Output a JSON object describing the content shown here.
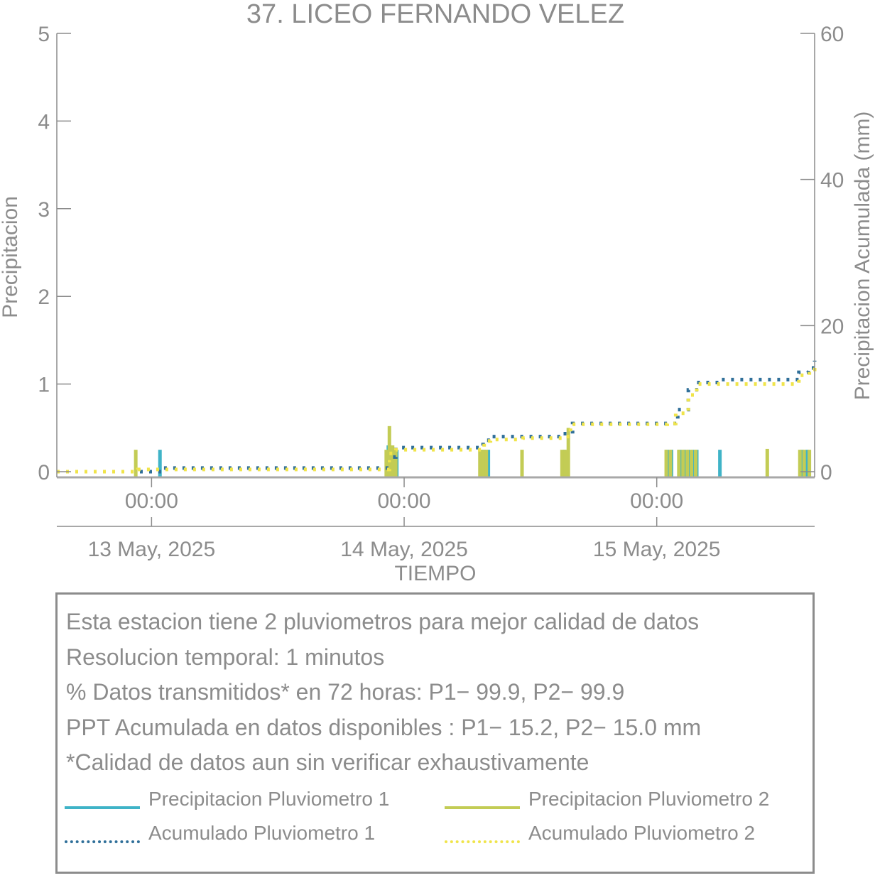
{
  "chart_data": {
    "type": "bar",
    "title": "37. LICEO FERNANDO VELEZ",
    "xlabel": "TIEMPO",
    "ylabel": "Precipitacion",
    "y2label": "Precipitacion Acumulada (mm)",
    "ylim": [
      0,
      5
    ],
    "y2lim": [
      0,
      60
    ],
    "yticks": [
      "0",
      "1",
      "2",
      "3",
      "4",
      "5"
    ],
    "y2ticks": [
      "0",
      "20",
      "40",
      "60"
    ],
    "xlim_hours": [
      -9,
      63
    ],
    "x_time_ticks": [
      {
        "hour": 0,
        "label": "00:00"
      },
      {
        "hour": 24,
        "label": "00:00"
      },
      {
        "hour": 48,
        "label": "00:00"
      }
    ],
    "x_date_ticks": [
      {
        "hour": 0,
        "label": "13 May, 2025"
      },
      {
        "hour": 24,
        "label": "14 May, 2025"
      },
      {
        "hour": 48,
        "label": "15 May, 2025"
      }
    ],
    "series": [
      {
        "name": "Precipitacion Pluviometro 1",
        "kind": "bar",
        "color": "#3fb3c7",
        "points": [
          [
            0.8,
            0.25
          ],
          [
            22.5,
            0.3
          ],
          [
            22.8,
            0.3
          ],
          [
            23.3,
            0.25
          ],
          [
            31.3,
            0.25
          ],
          [
            31.6,
            0.25
          ],
          [
            32.0,
            0.25
          ],
          [
            39.2,
            0.25
          ],
          [
            39.5,
            0.2
          ],
          [
            49.0,
            0.25
          ],
          [
            49.4,
            0.25
          ],
          [
            50.2,
            0.25
          ],
          [
            50.6,
            0.25
          ],
          [
            51.0,
            0.25
          ],
          [
            51.4,
            0.25
          ],
          [
            51.8,
            0.25
          ],
          [
            54.0,
            0.25
          ],
          [
            61.8,
            0.25
          ],
          [
            62.3,
            0.25
          ]
        ]
      },
      {
        "name": "Precipitacion Pluviometro 2",
        "kind": "bar",
        "color": "#c3cc55",
        "points": [
          [
            -1.5,
            0.25
          ],
          [
            22.3,
            0.25
          ],
          [
            22.6,
            0.52
          ],
          [
            22.9,
            0.3
          ],
          [
            23.2,
            0.25
          ],
          [
            31.2,
            0.25
          ],
          [
            31.5,
            0.25
          ],
          [
            31.8,
            0.25
          ],
          [
            35.2,
            0.25
          ],
          [
            39.0,
            0.25
          ],
          [
            39.3,
            0.25
          ],
          [
            39.6,
            0.5
          ],
          [
            48.9,
            0.25
          ],
          [
            49.3,
            0.25
          ],
          [
            50.1,
            0.25
          ],
          [
            50.5,
            0.25
          ],
          [
            50.9,
            0.25
          ],
          [
            51.3,
            0.25
          ],
          [
            51.7,
            0.25
          ],
          [
            58.5,
            0.26
          ],
          [
            61.6,
            0.25
          ],
          [
            62.0,
            0.25
          ],
          [
            62.5,
            0.25
          ]
        ]
      },
      {
        "name": "Acumulado Pluviometro 1",
        "kind": "dotted-line",
        "color": "#2f6f99",
        "points": [
          [
            -9,
            0
          ],
          [
            0.5,
            0
          ],
          [
            1.0,
            0.5
          ],
          [
            22.3,
            0.5
          ],
          [
            22.6,
            2.0
          ],
          [
            23.2,
            3.3
          ],
          [
            31.0,
            3.3
          ],
          [
            31.5,
            4.3
          ],
          [
            32.2,
            4.8
          ],
          [
            39.0,
            5.2
          ],
          [
            40.0,
            6.6
          ],
          [
            49.0,
            6.6
          ],
          [
            50.0,
            8.5
          ],
          [
            51.0,
            11.2
          ],
          [
            52.0,
            12.2
          ],
          [
            54.0,
            12.6
          ],
          [
            60.0,
            12.6
          ],
          [
            61.5,
            13.6
          ],
          [
            62.4,
            14.2
          ],
          [
            63.0,
            15.2
          ]
        ]
      },
      {
        "name": "Acumulado Pluviometro 2",
        "kind": "dotted-line",
        "color": "#f0e44a",
        "points": [
          [
            -9,
            0
          ],
          [
            -1.6,
            0
          ],
          [
            -1.3,
            0.3
          ],
          [
            22.0,
            0.3
          ],
          [
            22.6,
            2.5
          ],
          [
            23.2,
            3.0
          ],
          [
            31.0,
            3.0
          ],
          [
            31.6,
            4.2
          ],
          [
            32.2,
            4.4
          ],
          [
            35.3,
            4.6
          ],
          [
            39.0,
            4.8
          ],
          [
            39.8,
            6.5
          ],
          [
            49.0,
            6.6
          ],
          [
            49.8,
            8.0
          ],
          [
            51.0,
            10.5
          ],
          [
            51.8,
            12.0
          ],
          [
            60.0,
            12.0
          ],
          [
            61.5,
            13.2
          ],
          [
            62.5,
            14.0
          ],
          [
            63.0,
            14.8
          ]
        ]
      }
    ],
    "legend_placement": "bottom"
  },
  "info": {
    "lines": [
      "Esta estacion tiene 2 pluviometros para mejor calidad de datos",
      "Resolucion temporal: 1 minutos",
      "% Datos transmitidos* en 72 horas: P1− 99.9, P2− 99.9",
      "PPT Acumulada en datos disponibles : P1− 15.2, P2− 15.0 mm",
      "*Calidad de datos aun sin verificar exhaustivamente"
    ]
  },
  "legend": {
    "items": [
      {
        "label": "Precipitacion Pluviometro 1",
        "color": "#3fb3c7",
        "style": "solid"
      },
      {
        "label": "Precipitacion Pluviometro 2",
        "color": "#c3cc55",
        "style": "solid"
      },
      {
        "label": "Acumulado Pluviometro 1",
        "color": "#2f6f99",
        "style": "dotted"
      },
      {
        "label": "Acumulado Pluviometro 2",
        "color": "#f0e44a",
        "style": "dotted"
      }
    ]
  }
}
